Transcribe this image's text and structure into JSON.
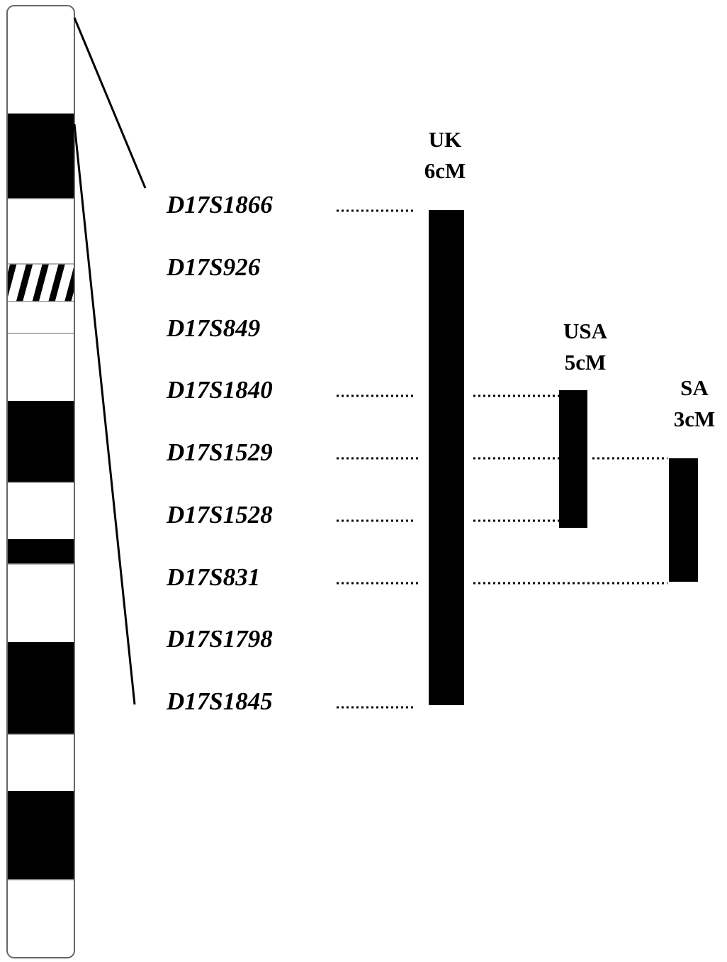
{
  "markers": [
    "D17S1866",
    "D17S926",
    "D17S849",
    "D17S1840",
    "D17S1529",
    "D17S1528",
    "D17S831",
    "D17S1798",
    "D17S1845"
  ],
  "regions": [
    {
      "name": "UK",
      "size": "6cM"
    },
    {
      "name": "USA",
      "size": "5cM"
    },
    {
      "name": "SA",
      "size": "3cM"
    }
  ]
}
